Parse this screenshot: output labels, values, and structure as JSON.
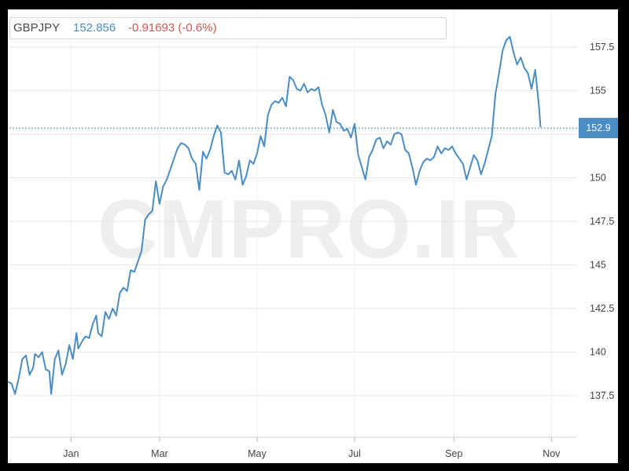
{
  "header": {
    "symbol": "GBPJPY",
    "price": "152.856",
    "change": "-0.91693 (-0.6%)"
  },
  "watermark": "CMPRO.IR",
  "last_value_label": "152.9",
  "colors": {
    "line": "#4a8cc4",
    "change_negative": "#d9534f",
    "grid": "#e6e6e6",
    "badge": "#4a8cc4"
  },
  "chart_data": {
    "type": "line",
    "title": "",
    "xlabel": "",
    "ylabel": "",
    "ylim": [
      135.0,
      158.5
    ],
    "yticks": [
      137.5,
      140,
      142.5,
      145,
      147.5,
      150,
      152.5,
      155,
      157.5
    ],
    "ytick_labels": [
      "137.5",
      "140",
      "142.5",
      "145",
      "147.5",
      "150",
      "",
      "155",
      "157.5"
    ],
    "xrange": [
      0,
      310
    ],
    "xticks": [
      {
        "label": "Jan",
        "x": 35
      },
      {
        "label": "Mar",
        "x": 84
      },
      {
        "label": "May",
        "x": 138
      },
      {
        "label": "Jul",
        "x": 192
      },
      {
        "label": "Sep",
        "x": 247
      },
      {
        "label": "Nov",
        "x": 301
      }
    ],
    "grid": true,
    "last_value": 152.856,
    "series": [
      {
        "values": [
          [
            0,
            138.3
          ],
          [
            2,
            138.2
          ],
          [
            4,
            137.6
          ],
          [
            6,
            138.5
          ],
          [
            8,
            139.6
          ],
          [
            10,
            139.8
          ],
          [
            12,
            138.7
          ],
          [
            14,
            139.1
          ],
          [
            15,
            139.9
          ],
          [
            17,
            139.7
          ],
          [
            19,
            140.0
          ],
          [
            21,
            139.0
          ],
          [
            23,
            138.9
          ],
          [
            24,
            137.6
          ],
          [
            26,
            139.6
          ],
          [
            28,
            140.1
          ],
          [
            30,
            138.7
          ],
          [
            32,
            139.3
          ],
          [
            34,
            140.4
          ],
          [
            36,
            139.6
          ],
          [
            38,
            141.1
          ],
          [
            39,
            140.2
          ],
          [
            41,
            140.6
          ],
          [
            43,
            140.9
          ],
          [
            45,
            140.8
          ],
          [
            47,
            141.6
          ],
          [
            49,
            142.1
          ],
          [
            50,
            141.1
          ],
          [
            52,
            140.9
          ],
          [
            54,
            142.3
          ],
          [
            56,
            141.9
          ],
          [
            58,
            142.5
          ],
          [
            60,
            142.1
          ],
          [
            62,
            143.4
          ],
          [
            64,
            143.7
          ],
          [
            66,
            143.5
          ],
          [
            68,
            144.7
          ],
          [
            70,
            144.6
          ],
          [
            72,
            145.2
          ],
          [
            74,
            145.8
          ],
          [
            76,
            147.6
          ],
          [
            78,
            147.9
          ],
          [
            80,
            148.1
          ],
          [
            82,
            149.8
          ],
          [
            84,
            148.5
          ],
          [
            86,
            149.5
          ],
          [
            88,
            149.9
          ],
          [
            90,
            150.5
          ],
          [
            92,
            151.1
          ],
          [
            94,
            151.7
          ],
          [
            96,
            152.0
          ],
          [
            98,
            151.9
          ],
          [
            100,
            151.7
          ],
          [
            102,
            151.1
          ],
          [
            104,
            150.8
          ],
          [
            106,
            149.3
          ],
          [
            108,
            151.5
          ],
          [
            110,
            151.1
          ],
          [
            112,
            151.6
          ],
          [
            114,
            152.4
          ],
          [
            116,
            153.0
          ],
          [
            118,
            152.6
          ],
          [
            120,
            150.3
          ],
          [
            122,
            150.2
          ],
          [
            124,
            150.4
          ],
          [
            126,
            149.9
          ],
          [
            128,
            151.0
          ],
          [
            130,
            149.6
          ],
          [
            132,
            150.1
          ],
          [
            134,
            151.0
          ],
          [
            136,
            150.8
          ],
          [
            138,
            151.4
          ],
          [
            140,
            152.4
          ],
          [
            142,
            151.8
          ],
          [
            144,
            153.6
          ],
          [
            146,
            154.2
          ],
          [
            148,
            154.4
          ],
          [
            150,
            154.3
          ],
          [
            152,
            154.6
          ],
          [
            154,
            154.1
          ],
          [
            156,
            155.8
          ],
          [
            158,
            155.6
          ],
          [
            160,
            155.1
          ],
          [
            162,
            155.0
          ],
          [
            164,
            155.4
          ],
          [
            166,
            154.9
          ],
          [
            168,
            155.1
          ],
          [
            170,
            155.0
          ],
          [
            172,
            155.2
          ],
          [
            174,
            154.2
          ],
          [
            176,
            153.6
          ],
          [
            178,
            152.6
          ],
          [
            180,
            153.9
          ],
          [
            182,
            153.2
          ],
          [
            184,
            153.1
          ],
          [
            186,
            152.7
          ],
          [
            188,
            152.8
          ],
          [
            190,
            152.3
          ],
          [
            192,
            153.1
          ],
          [
            194,
            151.3
          ],
          [
            196,
            150.6
          ],
          [
            198,
            149.9
          ],
          [
            200,
            151.2
          ],
          [
            202,
            151.6
          ],
          [
            204,
            152.2
          ],
          [
            206,
            152.3
          ],
          [
            208,
            151.7
          ],
          [
            210,
            152.1
          ],
          [
            212,
            151.9
          ],
          [
            214,
            152.5
          ],
          [
            216,
            152.6
          ],
          [
            218,
            152.5
          ],
          [
            220,
            151.6
          ],
          [
            222,
            151.4
          ],
          [
            224,
            150.6
          ],
          [
            226,
            149.6
          ],
          [
            228,
            150.4
          ],
          [
            230,
            150.9
          ],
          [
            232,
            151.1
          ],
          [
            234,
            151.0
          ],
          [
            236,
            151.2
          ],
          [
            238,
            151.8
          ],
          [
            240,
            151.4
          ],
          [
            242,
            151.7
          ],
          [
            244,
            151.6
          ],
          [
            246,
            151.8
          ],
          [
            248,
            151.4
          ],
          [
            250,
            151.1
          ],
          [
            252,
            150.8
          ],
          [
            254,
            149.9
          ],
          [
            256,
            150.6
          ],
          [
            258,
            151.3
          ],
          [
            260,
            151.0
          ],
          [
            262,
            150.2
          ],
          [
            264,
            150.8
          ],
          [
            266,
            151.6
          ],
          [
            268,
            152.4
          ],
          [
            270,
            154.8
          ],
          [
            272,
            156.0
          ],
          [
            274,
            157.3
          ],
          [
            276,
            157.9
          ],
          [
            278,
            158.1
          ],
          [
            280,
            157.2
          ],
          [
            282,
            156.5
          ],
          [
            284,
            156.9
          ],
          [
            286,
            156.3
          ],
          [
            288,
            156.0
          ],
          [
            290,
            155.1
          ],
          [
            292,
            156.2
          ],
          [
            294,
            154.2
          ],
          [
            295,
            152.9
          ]
        ]
      }
    ]
  }
}
